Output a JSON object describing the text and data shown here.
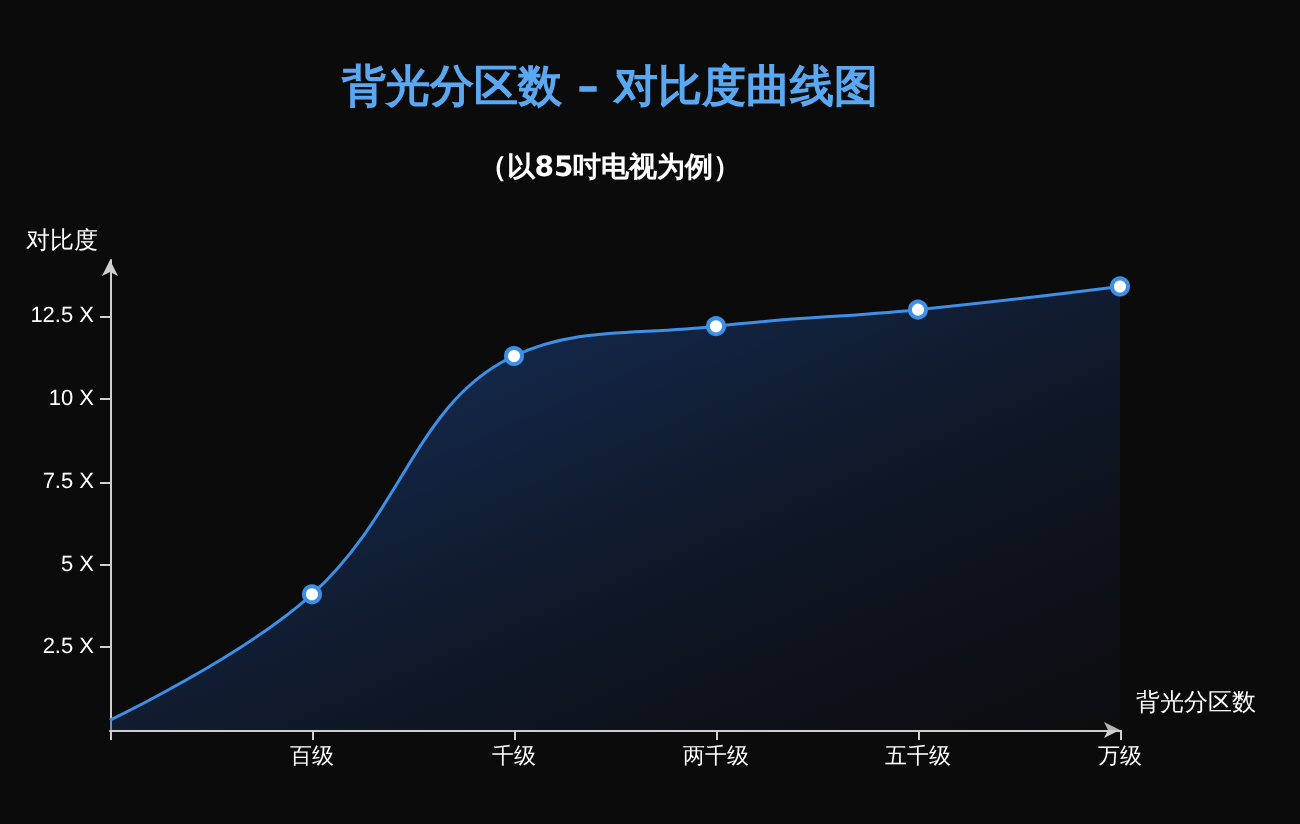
{
  "chart_data": {
    "type": "area",
    "title": "背光分区数 – 对比度曲线图",
    "subtitle": "（以85吋电视为例）",
    "xlabel": "背光分区数",
    "ylabel": "对比度",
    "categories": [
      null,
      "百级",
      "千级",
      "两千级",
      "五千级",
      "万级"
    ],
    "series": [
      {
        "color": "#3f8fe6",
        "values": [
          0.3,
          4.1,
          11.3,
          12.2,
          12.7,
          13.4
        ]
      }
    ],
    "ylim": [
      0,
      14.2
    ],
    "yticks": [
      {
        "value": 2.5,
        "label": "2.5 X"
      },
      {
        "value": 5,
        "label": "5 X"
      },
      {
        "value": 7.5,
        "label": "7.5 X"
      },
      {
        "value": 10,
        "label": "10 X"
      },
      {
        "value": 12.5,
        "label": "12.5 X"
      }
    ],
    "grid": false,
    "marker": "circle"
  }
}
